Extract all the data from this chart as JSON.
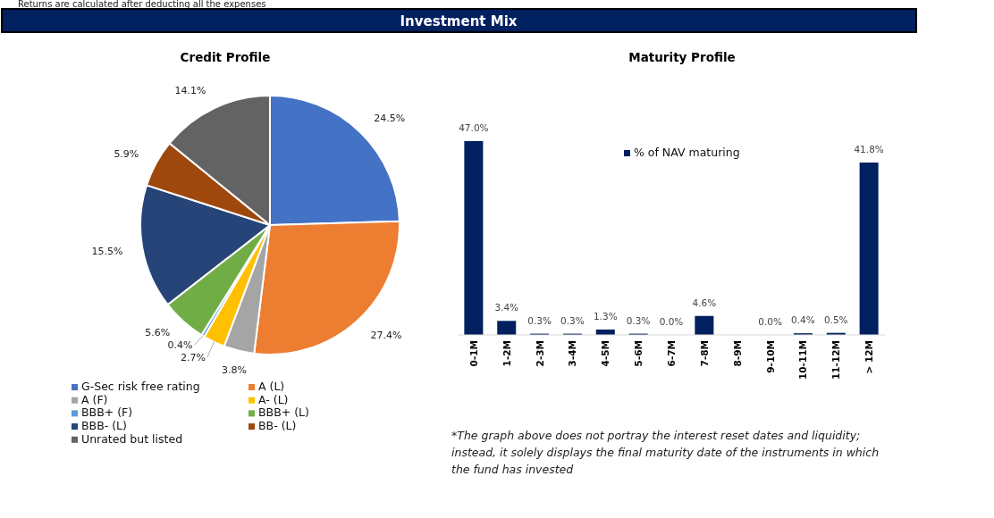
{
  "chart_data": [
    {
      "type": "pie",
      "title": "Credit Profile",
      "annotations": [
        "Returns are calculated after deducting all the expenses",
        "Investment Mix"
      ],
      "categories": [
        "G-Sec risk free rating",
        "A (L)",
        "A (F)",
        "A- (L)",
        "BBB+ (F)",
        "BBB+ (L)",
        "BBB- (L)",
        "BB- (L)",
        "Unrated but listed"
      ],
      "values": [
        24.5,
        27.4,
        3.8,
        2.7,
        0.4,
        5.6,
        15.5,
        5.9,
        14.1
      ],
      "value_labels": [
        "24.5%",
        "27.4%",
        "3.8%",
        "2.7%",
        "0.4%",
        "5.6%",
        "15.5%",
        "5.9%",
        "14.1%"
      ],
      "colors": [
        "#4472c4",
        "#ed7d31",
        "#a5a5a5",
        "#ffc000",
        "#5b9bd5",
        "#70ad47",
        "#264478",
        "#9e480e",
        "#636363"
      ],
      "legend": "bottom"
    },
    {
      "type": "bar",
      "title": "Maturity Profile",
      "annotations": [
        "*The graph above does not portray the interest reset dates and liquidity; instead, it solely displays the final maturity date of the instruments in which the fund has invested"
      ],
      "categories": [
        "0-1M",
        "1-2M",
        "2-3M",
        "3-4M",
        "4-5M",
        "5-6M",
        "6-7M",
        "7-8M",
        "8-9M",
        "9-10M",
        "10-11M",
        "11-12M",
        "> 12M"
      ],
      "series": [
        {
          "name": "% of NAV maturing",
          "color": "#002060",
          "values": [
            47.0,
            3.4,
            0.3,
            0.3,
            1.3,
            0.3,
            0.0,
            4.6,
            null,
            0.0,
            0.4,
            0.5,
            41.8
          ],
          "value_labels": [
            "47.0%",
            "3.4%",
            "0.3%",
            "0.3%",
            "1.3%",
            "0.3%",
            "0.0%",
            "4.6%",
            null,
            "0.0%",
            "0.4%",
            "0.5%",
            "41.8%"
          ]
        }
      ],
      "legend": "top"
    }
  ]
}
